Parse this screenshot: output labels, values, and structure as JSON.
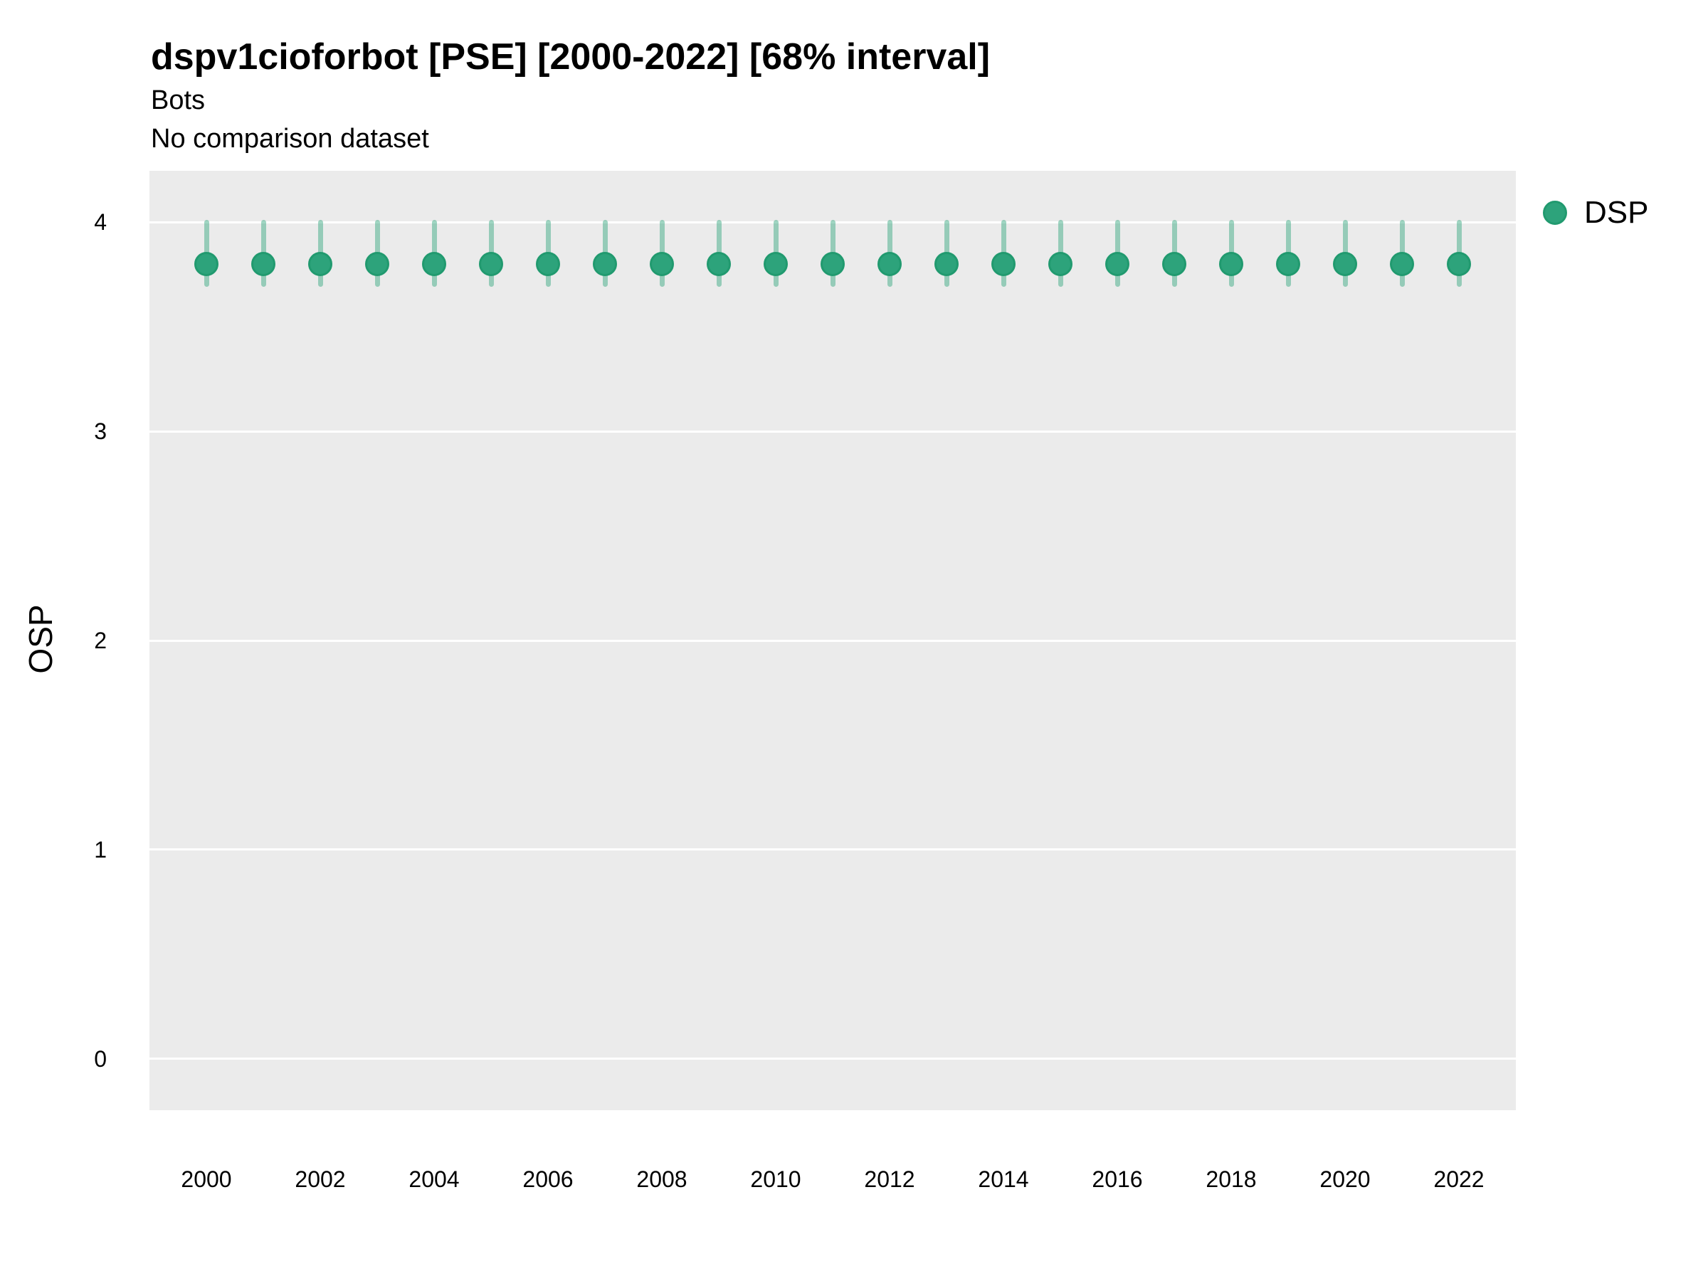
{
  "header": {
    "title": "dspv1cioforbot [PSE] [2000-2022] [68% interval]",
    "subtitle": "Bots",
    "comparison_note": "No comparison dataset"
  },
  "y_axis": {
    "title": "OSP"
  },
  "legend": {
    "items": [
      {
        "label": "DSP",
        "color": "#2da37b"
      }
    ]
  },
  "colors": {
    "panel_background": "#ebebeb",
    "gridline": "#ffffff",
    "point_fill": "#2da37b",
    "point_stroke": "#219a6f",
    "interval_bar": "rgba(45,163,123,0.45)",
    "text": "#000000"
  },
  "chart_data": {
    "type": "scatter",
    "subtype": "pointrange-68pct-interval",
    "title": "dspv1cioforbot [PSE] [2000-2022] [68% interval]",
    "subtitle": "Bots",
    "note": "No comparison dataset",
    "xlabel": "",
    "ylabel": "OSP",
    "x": [
      2000,
      2001,
      2002,
      2003,
      2004,
      2005,
      2006,
      2007,
      2008,
      2009,
      2010,
      2011,
      2012,
      2013,
      2014,
      2015,
      2016,
      2017,
      2018,
      2019,
      2020,
      2021,
      2022
    ],
    "series": [
      {
        "name": "DSP",
        "color": "#2da37b",
        "means": [
          3.8,
          3.8,
          3.8,
          3.8,
          3.8,
          3.8,
          3.8,
          3.8,
          3.8,
          3.8,
          3.8,
          3.8,
          3.8,
          3.8,
          3.8,
          3.8,
          3.8,
          3.8,
          3.8,
          3.8,
          3.8,
          3.8,
          3.8
        ],
        "lower_68": [
          3.69,
          3.69,
          3.69,
          3.69,
          3.69,
          3.69,
          3.69,
          3.69,
          3.69,
          3.69,
          3.69,
          3.69,
          3.69,
          3.69,
          3.69,
          3.69,
          3.69,
          3.69,
          3.69,
          3.69,
          3.69,
          3.69,
          3.69
        ],
        "upper_68": [
          4.01,
          4.01,
          4.01,
          4.01,
          4.01,
          4.01,
          4.01,
          4.01,
          4.01,
          4.01,
          4.01,
          4.01,
          4.01,
          4.01,
          4.01,
          4.01,
          4.01,
          4.01,
          4.01,
          4.01,
          4.01,
          4.01,
          4.01
        ]
      }
    ],
    "xlim": [
      1999,
      2023
    ],
    "ylim": [
      -0.245,
      4.245
    ],
    "y_ticks": [
      4,
      3,
      2,
      1,
      0
    ],
    "x_tick_years": [
      2000,
      2002,
      2004,
      2006,
      2008,
      2010,
      2012,
      2014,
      2016,
      2018,
      2020,
      2022
    ],
    "grid": "horizontal major gridlines only, white on gray panel; no vertical gridlines; no minor gridlines",
    "legend_position": "right-top"
  }
}
